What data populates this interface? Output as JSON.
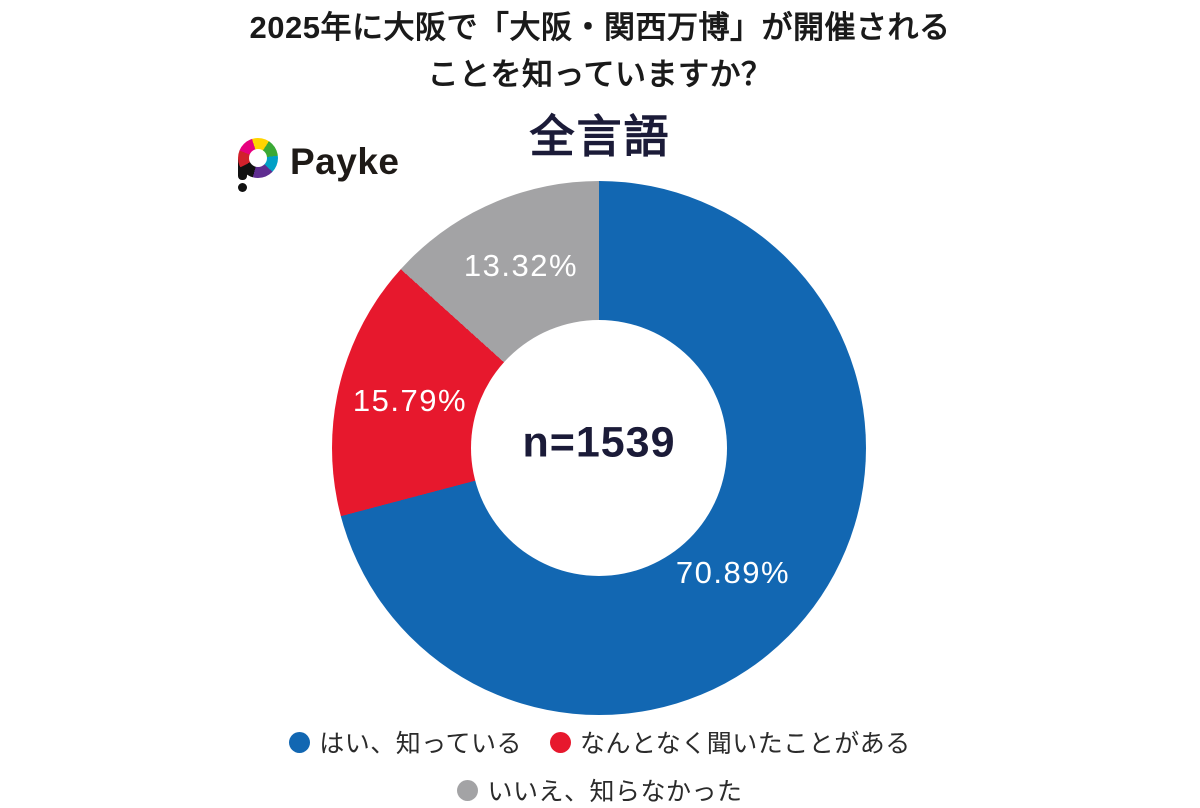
{
  "page": {
    "title_line1": "2025年に大阪で「大阪・関西万博」が開催される",
    "title_line2": "ことを知っていますか？",
    "subtitle": "全言語"
  },
  "logo": {
    "brand": "Payke"
  },
  "chart_data": {
    "type": "pie",
    "variant": "donut",
    "title": "全言語",
    "center_label": "n=1539",
    "sample_size": 1539,
    "start_angle_deg": 0,
    "direction": "clockwise",
    "legend_position": "bottom",
    "categories": [
      "はい、知っている",
      "なんとなく聞いたことがある",
      "いいえ、知らなかった"
    ],
    "values": [
      70.89,
      15.79,
      13.32
    ],
    "labels": [
      "70.89%",
      "15.79%",
      "13.32%"
    ],
    "colors": [
      "#1267b2",
      "#e7182d",
      "#a3a3a5"
    ]
  },
  "colors": {
    "background": "#ffffff",
    "title_text": "#1a1a1a",
    "subtitle_text": "#1b1b38",
    "center_text": "#1b1b38",
    "slice_label_text": "#ffffff",
    "legend_text": "#2b2b2b"
  }
}
